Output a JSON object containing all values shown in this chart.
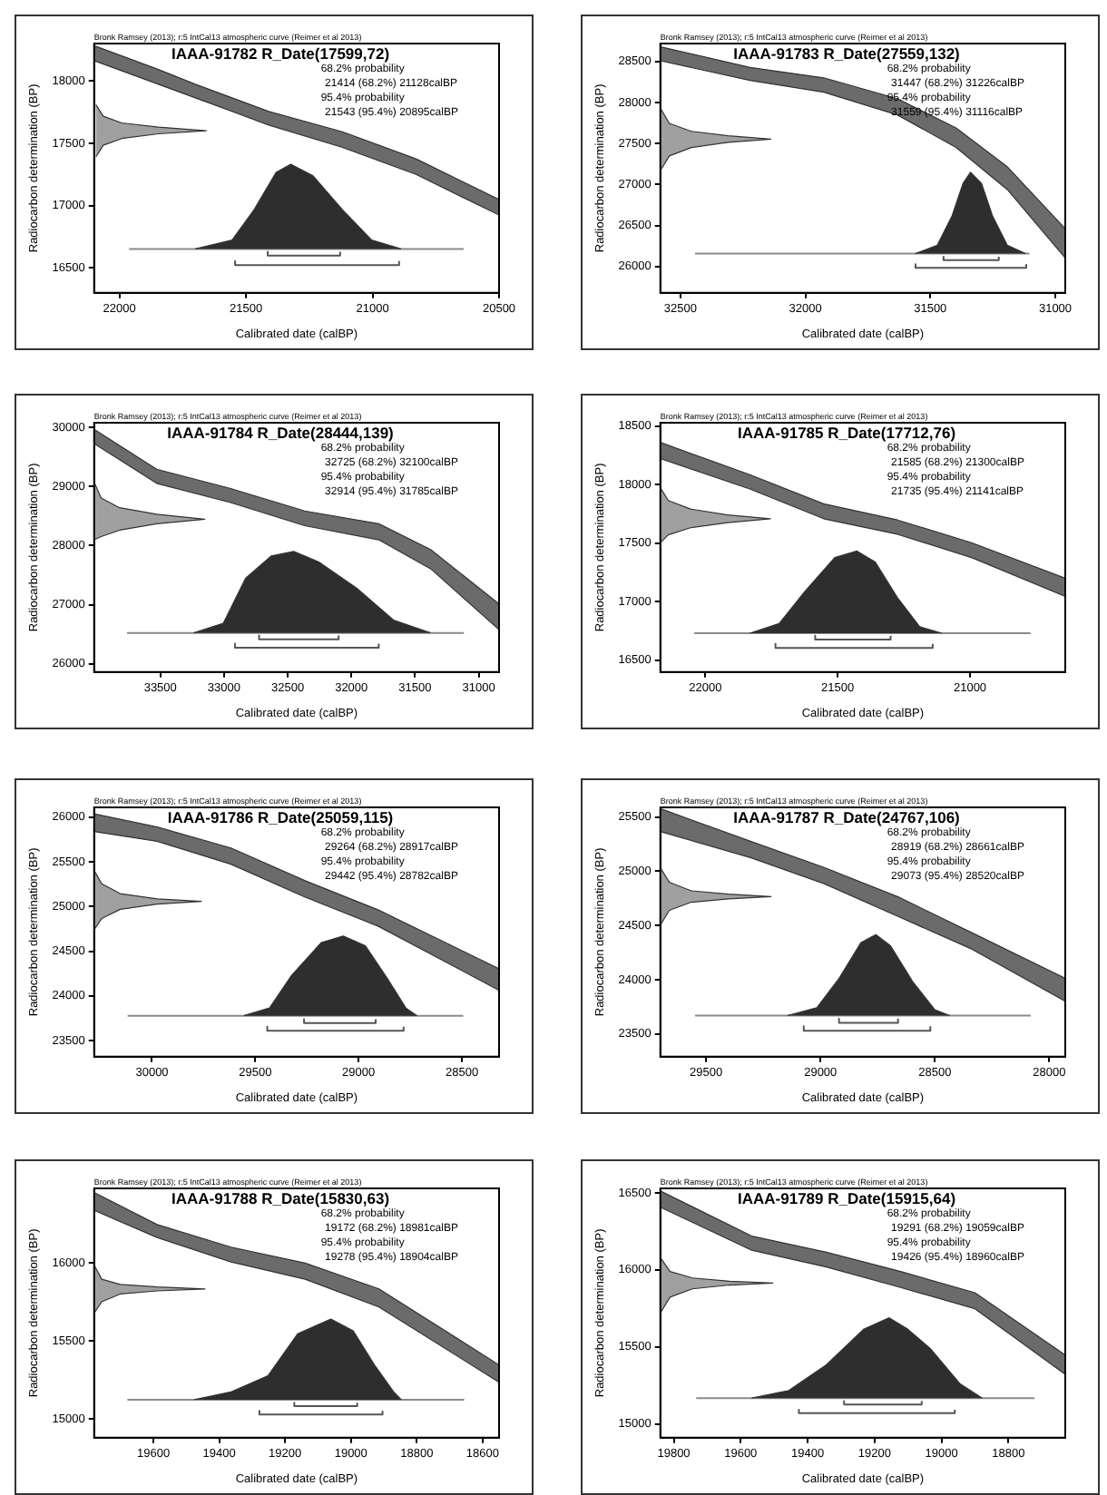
{
  "chart_data": [
    {
      "type": "area",
      "title": "IAAA-91782 R_Date(17599,72)",
      "subtitle": "Bronk Ramsey (2013); r:5 IntCal13 atmospheric curve (Reimer et al 2013)",
      "xlabel": "Calibrated date (calBP)",
      "ylabel": "Radiocarbon determination (BP)",
      "xlim": [
        22100,
        20500
      ],
      "xticks": [
        22000,
        21500,
        21000,
        20500
      ],
      "ylim": [
        16300,
        18300
      ],
      "yticks": [
        16500,
        17000,
        17500,
        18000
      ],
      "annotations": [
        "68.2% probability",
        "21414 (68.2%) 21128calBP",
        "95.4% probability",
        "21543 (95.4%) 20895calBP"
      ],
      "series": [
        {
          "type": "area",
          "color": "#6b6b6b",
          "x": [
            22100,
            21846,
            21700,
            21410,
            21119,
            20828,
            20500,
            20500,
            20828,
            21119,
            21410,
            21700,
            21846,
            22100
          ],
          "values": [
            18283,
            18092,
            17973,
            17755,
            17592,
            17375,
            17049,
            16924,
            17250,
            17467,
            17646,
            17864,
            17973,
            18163
          ]
        },
        {
          "type": "area",
          "color": "#a0a0a0",
          "x": [
            22093,
            22064,
            21991,
            21846,
            21657,
            21846,
            21991,
            22064,
            22093
          ],
          "values": [
            17810,
            17717,
            17663,
            17630,
            17600,
            17576,
            17538,
            17484,
            17390
          ]
        },
        {
          "type": "area",
          "color": "#2e2e2e",
          "x": [
            21701,
            21555,
            21468,
            21381,
            21323,
            21235,
            21119,
            21003,
            20887
          ],
          "values": [
            16652,
            16723,
            16967,
            17266,
            17332,
            17239,
            16967,
            16723,
            16652
          ]
        },
        {
          "type": "line",
          "color": "#8a8a8a",
          "x": [
            21962,
            20640
          ],
          "values": [
            16652,
            16652
          ]
        },
        {
          "type": "line",
          "color": "#555555",
          "x": [
            21414,
            21414,
            21128,
            21128
          ],
          "values": [
            16630,
            16598,
            16598,
            16630
          ]
        },
        {
          "type": "line",
          "color": "#555555",
          "x": [
            21543,
            21543,
            20895,
            20895
          ],
          "values": [
            16555,
            16522,
            16522,
            16555
          ]
        }
      ]
    },
    {
      "type": "area",
      "title": "IAAA-91783 R_Date(27559,132)",
      "subtitle": "Bronk Ramsey (2013); r:5 IntCal13 atmospheric curve (Reimer et al 2013)",
      "xlabel": "Calibrated date (calBP)",
      "ylabel": "Radiocarbon determination (BP)",
      "xlim": [
        32580,
        30960
      ],
      "xticks": [
        32500,
        32000,
        31500,
        31000
      ],
      "ylim": [
        25680,
        28720
      ],
      "yticks": [
        26000,
        26500,
        27000,
        27500,
        28000,
        28500
      ],
      "annotations": [
        "68.2% probability",
        "31447 (68.2%) 31226calBP",
        "95.4% probability",
        "31559 (95.4%) 31116calBP"
      ],
      "series": [
        {
          "type": "area",
          "color": "#6b6b6b",
          "x": [
            32580,
            32221,
            31926,
            31632,
            31397,
            31191,
            30960,
            30960,
            31191,
            31397,
            31632,
            31926,
            32221,
            32580
          ],
          "values": [
            28680,
            28429,
            28302,
            28048,
            27691,
            27215,
            26461,
            26104,
            26937,
            27453,
            27850,
            28127,
            28270,
            28510
          ]
        },
        {
          "type": "area",
          "color": "#a0a0a0",
          "x": [
            32579,
            32544,
            32456,
            32309,
            32138,
            32309,
            32456,
            32544,
            32579
          ],
          "values": [
            27928,
            27746,
            27650,
            27595,
            27555,
            27515,
            27452,
            27349,
            27174
          ]
        },
        {
          "type": "area",
          "color": "#2e2e2e",
          "x": [
            31560,
            31472,
            31413,
            31369,
            31339,
            31295,
            31251,
            31192,
            31119
          ],
          "values": [
            26158,
            26261,
            26618,
            27015,
            27150,
            27015,
            26618,
            26261,
            26158
          ]
        },
        {
          "type": "line",
          "color": "#8a8a8a",
          "x": [
            32441,
            31103
          ],
          "values": [
            26158,
            26158
          ]
        },
        {
          "type": "line",
          "color": "#555555",
          "x": [
            31447,
            31447,
            31226,
            31226
          ],
          "values": [
            26120,
            26079,
            26079,
            26120
          ]
        },
        {
          "type": "line",
          "color": "#555555",
          "x": [
            31559,
            31559,
            31116,
            31116
          ],
          "values": [
            26030,
            25984,
            25984,
            26030
          ]
        }
      ]
    },
    {
      "type": "area",
      "title": "IAAA-91784 R_Date(28444,139)",
      "subtitle": "Bronk Ramsey (2013); r:5 IntCal13 atmospheric curve (Reimer et al 2013)",
      "xlabel": "Calibrated date (calBP)",
      "ylabel": "Radiocarbon determination (BP)",
      "xlim": [
        34020,
        30840
      ],
      "xticks": [
        33500,
        33000,
        32500,
        32000,
        31500,
        31000
      ],
      "ylim": [
        25860,
        30080
      ],
      "yticks": [
        26000,
        27000,
        28000,
        29000,
        30000
      ],
      "annotations": [
        "68.2% probability",
        "32725 (68.2%) 32100calBP",
        "95.4% probability",
        "32914 (95.4%) 31785calBP"
      ],
      "series": [
        {
          "type": "area",
          "color": "#6b6b6b",
          "x": [
            34020,
            33529,
            32948,
            32366,
            31785,
            31378,
            30840,
            30840,
            31378,
            31785,
            32366,
            32948,
            33529,
            34020
          ],
          "values": [
            29967,
            29293,
            28967,
            28587,
            28370,
            27935,
            27011,
            26576,
            27609,
            28098,
            28337,
            28728,
            29054,
            29728
          ]
        },
        {
          "type": "area",
          "color": "#a0a0a0",
          "x": [
            34020,
            33965,
            33820,
            33529,
            33151,
            33529,
            33820,
            33965,
            34020
          ],
          "values": [
            29076,
            28804,
            28641,
            28532,
            28446,
            28370,
            28261,
            28152,
            28098
          ]
        },
        {
          "type": "area",
          "color": "#2e2e2e",
          "x": [
            33238,
            33006,
            32831,
            32628,
            32453,
            32250,
            31959,
            31669,
            31378
          ],
          "values": [
            26522,
            26685,
            27446,
            27826,
            27902,
            27717,
            27283,
            26739,
            26522
          ]
        },
        {
          "type": "line",
          "color": "#8a8a8a",
          "x": [
            33762,
            31116
          ],
          "values": [
            26522,
            26522
          ]
        },
        {
          "type": "line",
          "color": "#555555",
          "x": [
            32725,
            32725,
            32100,
            32100
          ],
          "values": [
            26480,
            26413,
            26413,
            26480
          ]
        },
        {
          "type": "line",
          "color": "#555555",
          "x": [
            32914,
            32914,
            31785,
            31785
          ],
          "values": [
            26340,
            26272,
            26272,
            26340
          ]
        }
      ]
    },
    {
      "type": "area",
      "title": "IAAA-91785 R_Date(17712,76)",
      "subtitle": "Bronk Ramsey (2013); r:5 IntCal13 atmospheric curve (Reimer et al 2013)",
      "xlabel": "Calibrated date (calBP)",
      "ylabel": "Radiocarbon determination (BP)",
      "xlim": [
        22170,
        20640
      ],
      "xticks": [
        22000,
        21500,
        21000
      ],
      "ylim": [
        16400,
        18530
      ],
      "yticks": [
        16500,
        17000,
        17500,
        18000,
        18500
      ],
      "annotations": [
        "68.2% probability",
        "21585 (68.2%) 21300calBP",
        "95.4% probability",
        "21735 (95.4%) 21141calBP"
      ],
      "series": [
        {
          "type": "area",
          "color": "#6b6b6b",
          "x": [
            22170,
            21832,
            21553,
            21274,
            20994,
            20640,
            20640,
            20994,
            21274,
            21553,
            21832,
            22170
          ],
          "values": [
            18362,
            18086,
            17837,
            17699,
            17505,
            17202,
            17047,
            17378,
            17577,
            17710,
            17964,
            18224
          ]
        },
        {
          "type": "area",
          "color": "#a0a0a0",
          "x": [
            22170,
            22140,
            22056,
            21916,
            21754,
            21916,
            22056,
            22140,
            22170
          ],
          "values": [
            17975,
            17865,
            17793,
            17743,
            17710,
            17677,
            17633,
            17572,
            17505
          ]
        },
        {
          "type": "area",
          "color": "#2e2e2e",
          "x": [
            21832,
            21721,
            21623,
            21511,
            21427,
            21358,
            21274,
            21190,
            21106
          ],
          "values": [
            16732,
            16815,
            17091,
            17378,
            17434,
            17340,
            17036,
            16787,
            16732
          ]
        },
        {
          "type": "line",
          "color": "#8a8a8a",
          "x": [
            22042,
            20771
          ],
          "values": [
            16732,
            16732
          ]
        },
        {
          "type": "line",
          "color": "#555555",
          "x": [
            21585,
            21585,
            21300,
            21300
          ],
          "values": [
            16710,
            16677,
            16677,
            16710
          ]
        },
        {
          "type": "line",
          "color": "#555555",
          "x": [
            21735,
            21735,
            21141,
            21141
          ],
          "values": [
            16640,
            16605,
            16605,
            16640
          ]
        }
      ]
    },
    {
      "type": "area",
      "title": "IAAA-91786 R_Date(25059,115)",
      "subtitle": "Bronk Ramsey (2013); r:5 IntCal13 atmospheric curve (Reimer et al 2013)",
      "xlabel": "Calibrated date (calBP)",
      "ylabel": "Radiocarbon determination (BP)",
      "xlim": [
        30280,
        28320
      ],
      "xticks": [
        30000,
        29500,
        29000,
        28500
      ],
      "ylim": [
        23320,
        26110
      ],
      "yticks": [
        23500,
        24000,
        24500,
        25000,
        25500,
        26000
      ],
      "annotations": [
        "68.2% probability",
        "29264 (68.2%) 28917calBP",
        "95.4% probability",
        "29442 (95.4%) 28782calBP"
      ],
      "series": [
        {
          "type": "area",
          "color": "#6b6b6b",
          "x": [
            30280,
            29975,
            29618,
            29261,
            28904,
            28320,
            28320,
            28904,
            29261,
            29618,
            29975,
            30280
          ],
          "values": [
            26037,
            25890,
            25656,
            25291,
            24962,
            24304,
            24063,
            24779,
            25108,
            25474,
            25730,
            25839
          ]
        },
        {
          "type": "area",
          "color": "#a0a0a0",
          "x": [
            30279,
            30243,
            30154,
            29975,
            29761,
            29975,
            30154,
            30243,
            30279
          ],
          "values": [
            25401,
            25254,
            25145,
            25086,
            25057,
            25028,
            24969,
            24867,
            24743
          ]
        },
        {
          "type": "area",
          "color": "#2e2e2e",
          "x": [
            29556,
            29431,
            29324,
            29181,
            29074,
            28967,
            28860,
            28771,
            28717
          ],
          "values": [
            23778,
            23865,
            24231,
            24596,
            24670,
            24560,
            24194,
            23865,
            23778
          ]
        },
        {
          "type": "line",
          "color": "#8a8a8a",
          "x": [
            30118,
            28493
          ],
          "values": [
            23778,
            23778
          ]
        },
        {
          "type": "line",
          "color": "#555555",
          "x": [
            29264,
            29264,
            28917,
            28917
          ],
          "values": [
            23740,
            23697,
            23697,
            23740
          ]
        },
        {
          "type": "line",
          "color": "#555555",
          "x": [
            29442,
            29442,
            28782,
            28782
          ],
          "values": [
            23655,
            23610,
            23610,
            23655
          ]
        }
      ]
    },
    {
      "type": "area",
      "title": "IAAA-91787 R_Date(24767,106)",
      "subtitle": "Bronk Ramsey (2013); r:5 IntCal13 atmospheric curve (Reimer et al 2013)",
      "xlabel": "Calibrated date (calBP)",
      "ylabel": "Radiocarbon determination (BP)",
      "xlim": [
        29700,
        27930
      ],
      "xticks": [
        29500,
        29000,
        28500,
        28000
      ],
      "ylim": [
        23290,
        25590
      ],
      "yticks": [
        23500,
        24000,
        24500,
        25000,
        25500
      ],
      "annotations": [
        "68.2% probability",
        "28919 (68.2%) 28661calBP",
        "95.4% probability",
        "29073 (95.4%) 28520calBP"
      ],
      "series": [
        {
          "type": "area",
          "color": "#6b6b6b",
          "x": [
            29700,
            29306,
            28984,
            28661,
            28339,
            27930,
            27930,
            28339,
            28661,
            28984,
            29306,
            29700
          ],
          "values": [
            25578,
            25277,
            25036,
            24765,
            24434,
            24012,
            23801,
            24283,
            24584,
            24886,
            25127,
            25367
          ]
        },
        {
          "type": "area",
          "color": "#a0a0a0",
          "x": [
            29700,
            29661,
            29565,
            29403,
            29216,
            29403,
            29565,
            29661,
            29700
          ],
          "values": [
            25032,
            24900,
            24820,
            24790,
            24767,
            24745,
            24715,
            24640,
            24502
          ]
        },
        {
          "type": "area",
          "color": "#2e2e2e",
          "x": [
            29145,
            29016,
            28919,
            28823,
            28758,
            28694,
            28597,
            28500,
            28435
          ],
          "values": [
            23669,
            23741,
            24012,
            24343,
            24416,
            24313,
            23982,
            23723,
            23669
          ]
        },
        {
          "type": "line",
          "color": "#8a8a8a",
          "x": [
            29548,
            28081
          ],
          "values": [
            23669,
            23669
          ]
        },
        {
          "type": "line",
          "color": "#555555",
          "x": [
            28919,
            28919,
            28661,
            28661
          ],
          "values": [
            23640,
            23602,
            23602,
            23640
          ]
        },
        {
          "type": "line",
          "color": "#555555",
          "x": [
            29073,
            29073,
            28520,
            28520
          ],
          "values": [
            23570,
            23530,
            23530,
            23570
          ]
        }
      ]
    },
    {
      "type": "area",
      "title": "IAAA-91788 R_Date(15830,63)",
      "subtitle": "Bronk Ramsey (2013); r:5 IntCal13 atmospheric curve (Reimer et al 2013)",
      "xlabel": "Calibrated date (calBP)",
      "ylabel": "Radiocarbon determination (BP)",
      "xlim": [
        19780,
        18550
      ],
      "xticks": [
        19600,
        19400,
        19200,
        19000,
        18800,
        18600
      ],
      "ylim": [
        14880,
        16480
      ],
      "yticks": [
        15000,
        15500,
        16000
      ],
      "annotations": [
        "68.2% probability",
        "19172 (68.2%) 18981calBP",
        "95.4% probability",
        "19278 (95.4%) 18904calBP"
      ],
      "series": [
        {
          "type": "area",
          "color": "#6b6b6b",
          "x": [
            19780,
            19589,
            19364,
            19139,
            18915,
            18550,
            18550,
            18915,
            19139,
            19364,
            19589,
            19780
          ],
          "values": [
            16454,
            16248,
            16103,
            16000,
            15835,
            15347,
            15236,
            15719,
            15897,
            16008,
            16165,
            16339
          ]
        },
        {
          "type": "area",
          "color": "#a0a0a0",
          "x": [
            19780,
            19757,
            19701,
            19589,
            19443,
            19589,
            19701,
            19757,
            19780
          ],
          "values": [
            15988,
            15897,
            15864,
            15847,
            15835,
            15822,
            15802,
            15752,
            15678
          ]
        },
        {
          "type": "area",
          "color": "#2e2e2e",
          "x": [
            19476,
            19364,
            19252,
            19162,
            19061,
            18993,
            18926,
            18870,
            18847
          ],
          "values": [
            15124,
            15174,
            15277,
            15546,
            15641,
            15566,
            15339,
            15174,
            15124
          ]
        },
        {
          "type": "line",
          "color": "#8a8a8a",
          "x": [
            19679,
            18656
          ],
          "values": [
            15124,
            15124
          ]
        },
        {
          "type": "line",
          "color": "#555555",
          "x": [
            19172,
            19172,
            18981,
            18981
          ],
          "values": [
            15105,
            15083,
            15083,
            15105
          ]
        },
        {
          "type": "line",
          "color": "#555555",
          "x": [
            19278,
            19278,
            18904,
            18904
          ],
          "values": [
            15052,
            15029,
            15029,
            15052
          ]
        }
      ]
    },
    {
      "type": "area",
      "title": "IAAA-91789 R_Date(15915,64)",
      "subtitle": "Bronk Ramsey (2013); r:5 IntCal13 atmospheric curve (Reimer et al 2013)",
      "xlabel": "Calibrated date (calBP)",
      "ylabel": "Radiocarbon determination (BP)",
      "xlim": [
        19840,
        18630
      ],
      "xticks": [
        19800,
        19600,
        19400,
        19200,
        19000,
        18800
      ],
      "ylim": [
        14910,
        16530
      ],
      "yticks": [
        15000,
        15500,
        16000,
        16500
      ],
      "annotations": [
        "68.2% probability",
        "19291 (68.2%) 19059calBP",
        "95.4% probability",
        "19426 (95.4%) 18960calBP"
      ],
      "series": [
        {
          "type": "area",
          "color": "#6b6b6b",
          "x": [
            19840,
            19567,
            19344,
            19122,
            18900,
            18630,
            18630,
            18900,
            19122,
            19344,
            19567,
            19840
          ],
          "values": [
            16513,
            16220,
            16115,
            15990,
            15852,
            15447,
            15321,
            15748,
            15886,
            16019,
            16128,
            16408
          ]
        },
        {
          "type": "area",
          "color": "#a0a0a0",
          "x": [
            19838,
            19811,
            19744,
            19633,
            19504,
            19633,
            19744,
            19811,
            19838
          ],
          "values": [
            16074,
            15990,
            15948,
            15927,
            15915,
            15902,
            15877,
            15823,
            15727
          ]
        },
        {
          "type": "area",
          "color": "#2e2e2e",
          "x": [
            19567,
            19456,
            19344,
            19233,
            19156,
            19100,
            19033,
            18944,
            18878
          ],
          "values": [
            15167,
            15217,
            15384,
            15614,
            15689,
            15614,
            15488,
            15259,
            15167
          ]
        },
        {
          "type": "line",
          "color": "#8a8a8a",
          "x": [
            19733,
            18722
          ],
          "values": [
            15167,
            15167
          ]
        },
        {
          "type": "line",
          "color": "#555555",
          "x": [
            19291,
            19291,
            19059,
            19059
          ],
          "values": [
            15147,
            15125,
            15125,
            15147
          ]
        },
        {
          "type": "line",
          "color": "#555555",
          "x": [
            19426,
            19426,
            18960,
            18960
          ],
          "values": [
            15092,
            15070,
            15070,
            15092
          ]
        }
      ]
    }
  ]
}
